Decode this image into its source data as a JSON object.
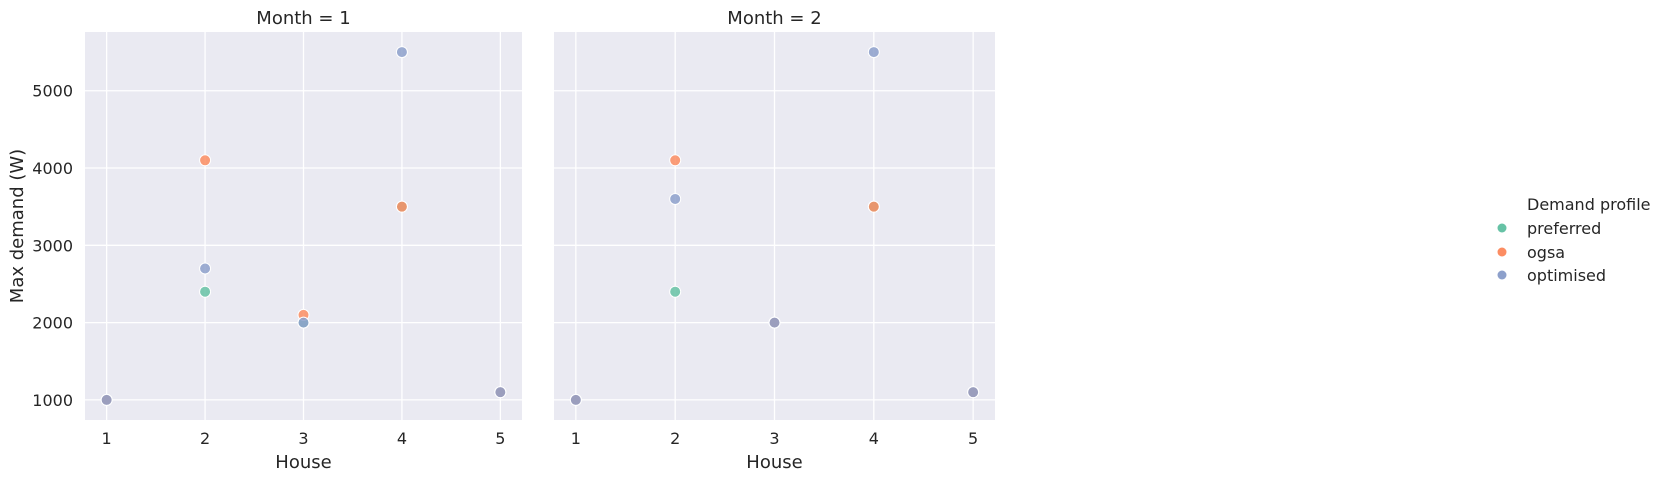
{
  "legend": {
    "title": "Demand profile",
    "items": [
      {
        "label": "preferred",
        "color": "#66c2a5"
      },
      {
        "label": "ogsa",
        "color": "#fc8d62"
      },
      {
        "label": "optimised",
        "color": "#8da0cb"
      }
    ]
  },
  "chart_data": [
    {
      "type": "scatter",
      "title": "Month = 1",
      "xlabel": "House",
      "ylabel": "Max demand (W)",
      "xticks": [
        1,
        2,
        3,
        4,
        5
      ],
      "yticks": [
        1000,
        2000,
        3000,
        4000,
        5000
      ],
      "xlim": [
        0.78,
        5.22
      ],
      "ylim": [
        740,
        5760
      ],
      "series": [
        {
          "name": "preferred",
          "color": "#66c2a5",
          "x": [
            1,
            2,
            3,
            4,
            5
          ],
          "y": [
            1000,
            2400,
            2000,
            3500,
            1100
          ]
        },
        {
          "name": "ogsa",
          "color": "#fc8d62",
          "x": [
            1,
            2,
            3,
            4,
            5
          ],
          "y": [
            1000,
            4100,
            2100,
            3500,
            1100
          ]
        },
        {
          "name": "optimised",
          "color": "#8da0cb",
          "x": [
            1,
            2,
            3,
            4,
            5
          ],
          "y": [
            1000,
            2700,
            2000,
            5500,
            1100
          ]
        }
      ]
    },
    {
      "type": "scatter",
      "title": "Month = 2",
      "xlabel": "House",
      "ylabel": "",
      "xticks": [
        1,
        2,
        3,
        4,
        5
      ],
      "yticks": [
        1000,
        2000,
        3000,
        4000,
        5000
      ],
      "xlim": [
        0.78,
        5.22
      ],
      "ylim": [
        740,
        5760
      ],
      "series": [
        {
          "name": "preferred",
          "color": "#66c2a5",
          "x": [
            1,
            2,
            3,
            4,
            5
          ],
          "y": [
            1000,
            2400,
            2000,
            3500,
            1100
          ]
        },
        {
          "name": "ogsa",
          "color": "#fc8d62",
          "x": [
            1,
            2,
            3,
            4,
            5
          ],
          "y": [
            1000,
            4100,
            2000,
            3500,
            1100
          ]
        },
        {
          "name": "optimised",
          "color": "#8da0cb",
          "x": [
            1,
            2,
            3,
            4,
            5
          ],
          "y": [
            1000,
            3600,
            2000,
            5500,
            1100
          ]
        }
      ]
    }
  ]
}
